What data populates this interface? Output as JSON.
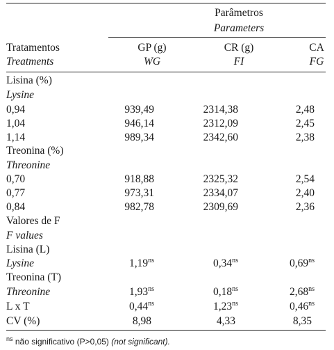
{
  "header": {
    "group_label": "Parâmetros",
    "group_label_en": "Parameters",
    "col_treatment": "Tratamentos",
    "col_treatment_en": "Treatments",
    "col_gp": "GP (g)",
    "col_gp_en": "WG",
    "col_cr": "CR (g)",
    "col_cr_en": "FI",
    "col_ca": "CA",
    "col_ca_en": "FG"
  },
  "sections": {
    "lysine": {
      "title": "Lisina (%)",
      "title_en": "Lysine"
    },
    "threonine": {
      "title": "Treonina (%)",
      "title_en": "Threonine"
    },
    "fvalues": {
      "title": "Valores de F",
      "title_en": "F values"
    }
  },
  "rows": [
    {
      "label": "0,94",
      "gp": "939,49",
      "cr": "2314,38",
      "ca": "2,48"
    },
    {
      "label": "1,04",
      "gp": "946,14",
      "cr": "2312,09",
      "ca": "2,45"
    },
    {
      "label": "1,14",
      "gp": "989,34",
      "cr": "2342,60",
      "ca": "2,38"
    },
    {
      "label": "0,70",
      "gp": "918,88",
      "cr": "2325,32",
      "ca": "2,54"
    },
    {
      "label": "0,77",
      "gp": "973,31",
      "cr": "2334,07",
      "ca": "2,40"
    },
    {
      "label": "0,84",
      "gp": "982,78",
      "cr": "2309,69",
      "ca": "2,36"
    }
  ],
  "fvalues": {
    "lysine_label": "Lisina (L)",
    "lysine_label_en": "Lysine",
    "lysine": {
      "gp": "1,19",
      "cr": "0,34",
      "ca": "0,69"
    },
    "threonine_label": "Treonina (T)",
    "threonine_label_en": "Threonine",
    "threonine": {
      "gp": "1,93",
      "cr": "0,18",
      "ca": "2,68"
    },
    "interaction_label": "L x T",
    "interaction": {
      "gp": "0,44",
      "cr": "1,23",
      "ca": "0,46"
    },
    "cv_label": "CV (%)",
    "cv": {
      "gp": "8,98",
      "cr": "4,33",
      "ca": "8,35"
    },
    "ns_mark": "ns"
  },
  "footnote": {
    "mark": "ns",
    "text": " não significativo (P>0,05) ",
    "text_en": "(not significant)."
  }
}
